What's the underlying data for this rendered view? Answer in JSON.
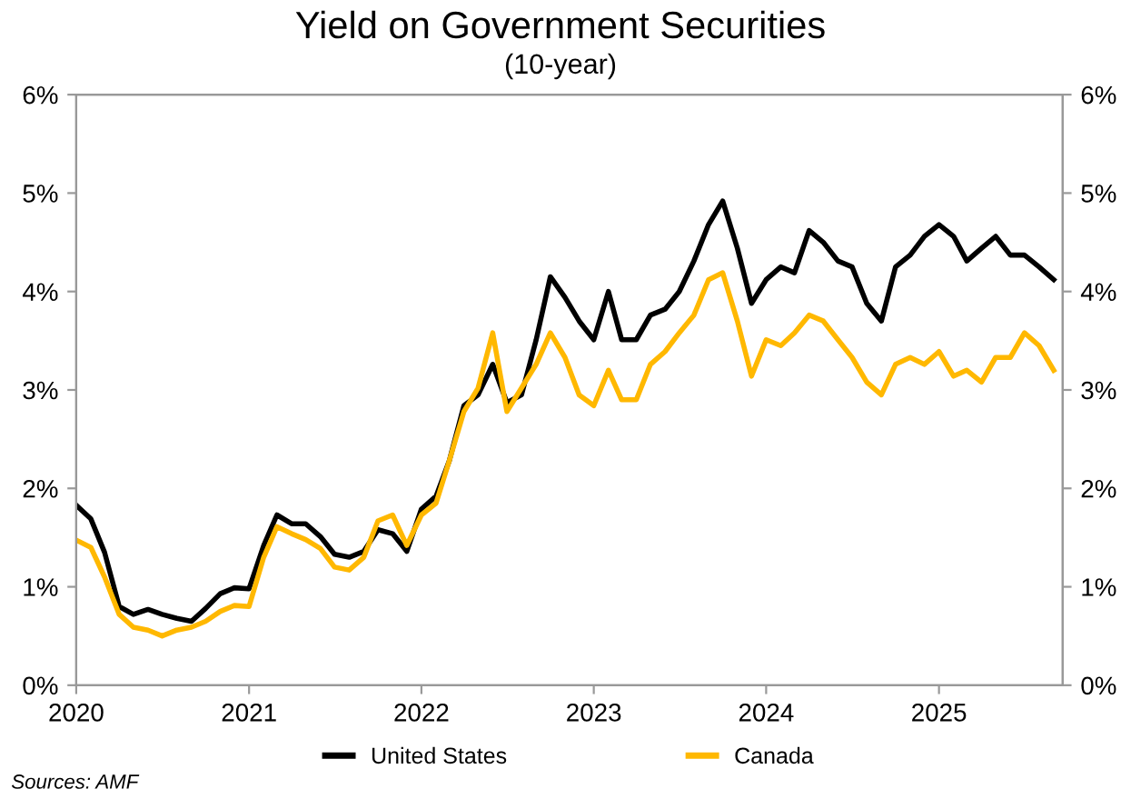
{
  "chart_data": {
    "type": "line",
    "title": "Yield on Government Securities",
    "subtitle": "(10-year)",
    "x": [
      "2020-01-03",
      "2020-02-01",
      "2020-03-01",
      "2020-04-01",
      "2020-05-01",
      "2020-06-01",
      "2020-07-01",
      "2020-08-01",
      "2020-09-01",
      "2020-10-01",
      "2020-11-01",
      "2020-12-01",
      "2021-01-01",
      "2021-02-01",
      "2021-03-01",
      "2021-04-01",
      "2021-05-01",
      "2021-06-01",
      "2021-07-01",
      "2021-08-01",
      "2021-09-01",
      "2021-10-01",
      "2021-11-01",
      "2021-12-01",
      "2022-01-01",
      "2022-02-01",
      "2022-03-01",
      "2022-04-01",
      "2022-05-01",
      "2022-06-01",
      "2022-07-01",
      "2022-08-01",
      "2022-09-01",
      "2022-10-01",
      "2022-11-01",
      "2022-12-01",
      "2023-01-01",
      "2023-02-01",
      "2023-03-01",
      "2023-04-01",
      "2023-05-01",
      "2023-06-01",
      "2023-07-01",
      "2023-08-01",
      "2023-09-01",
      "2023-10-01",
      "2023-11-01",
      "2023-12-01",
      "2024-01-01",
      "2024-02-01",
      "2024-03-01",
      "2024-04-01",
      "2024-05-01",
      "2024-06-01",
      "2024-07-01",
      "2024-08-01",
      "2024-09-01",
      "2024-10-01",
      "2024-11-01",
      "2024-12-01",
      "2025-01-01",
      "2025-02-01",
      "2025-03-01",
      "2025-04-01",
      "2025-05-01",
      "2025-06-01",
      "2025-07-01",
      "2025-08-01",
      "2025-09-01"
    ],
    "series": [
      {
        "name": "United States",
        "color": "#000000",
        "values": [
          1.82,
          1.69,
          1.35,
          0.8,
          0.72,
          0.77,
          0.72,
          0.68,
          0.65,
          0.78,
          0.93,
          0.99,
          0.98,
          1.42,
          1.73,
          1.64,
          1.64,
          1.51,
          1.33,
          1.3,
          1.36,
          1.58,
          1.54,
          1.36,
          1.79,
          1.92,
          2.28,
          2.84,
          2.95,
          3.26,
          2.87,
          2.95,
          3.51,
          4.15,
          3.94,
          3.7,
          3.51,
          4.0,
          3.51,
          3.51,
          3.76,
          3.82,
          4.0,
          4.31,
          4.68,
          4.92,
          4.44,
          3.88,
          4.12,
          4.25,
          4.19,
          4.62,
          4.5,
          4.31,
          4.25,
          3.88,
          3.7,
          4.25,
          4.37,
          4.56,
          4.68,
          4.56,
          4.31,
          4.44,
          4.56,
          4.37,
          4.37,
          4.25,
          4.12
        ]
      },
      {
        "name": "Canada",
        "color": "#ffb800",
        "values": [
          1.47,
          1.4,
          1.1,
          0.72,
          0.59,
          0.56,
          0.5,
          0.56,
          0.59,
          0.65,
          0.75,
          0.81,
          0.8,
          1.3,
          1.61,
          1.54,
          1.48,
          1.39,
          1.2,
          1.17,
          1.3,
          1.67,
          1.73,
          1.42,
          1.73,
          1.85,
          2.28,
          2.78,
          3.02,
          3.58,
          2.78,
          3.02,
          3.26,
          3.58,
          3.33,
          2.95,
          2.84,
          3.2,
          2.9,
          2.9,
          3.26,
          3.39,
          3.58,
          3.76,
          4.12,
          4.19,
          3.7,
          3.14,
          3.51,
          3.45,
          3.58,
          3.76,
          3.7,
          3.51,
          3.33,
          3.08,
          2.95,
          3.26,
          3.33,
          3.26,
          3.39,
          3.14,
          3.2,
          3.08,
          3.33,
          3.33,
          3.58,
          3.45,
          3.2
        ]
      }
    ],
    "xlim": [
      "2020-01-01",
      "2025-09-20"
    ],
    "xticks": [
      "2020",
      "2021",
      "2022",
      "2023",
      "2024",
      "2025"
    ],
    "ylim": [
      0,
      6
    ],
    "yticks": [
      {
        "value": 0,
        "label": "0%"
      },
      {
        "value": 1,
        "label": "1%"
      },
      {
        "value": 2,
        "label": "2%"
      },
      {
        "value": 3,
        "label": "3%"
      },
      {
        "value": 4,
        "label": "4%"
      },
      {
        "value": 5,
        "label": "5%"
      },
      {
        "value": 6,
        "label": "6%"
      }
    ],
    "y2lim": [
      0,
      6
    ],
    "y2ticks": [
      {
        "value": 0,
        "label": "0%"
      },
      {
        "value": 1,
        "label": "1%"
      },
      {
        "value": 2,
        "label": "2%"
      },
      {
        "value": 3,
        "label": "3%"
      },
      {
        "value": 4,
        "label": "4%"
      },
      {
        "value": 5,
        "label": "5%"
      },
      {
        "value": 6,
        "label": "6%"
      }
    ],
    "legend": "bottom",
    "grid": false,
    "line_style": "solid",
    "annotations": [
      "Sources: AMF"
    ]
  }
}
